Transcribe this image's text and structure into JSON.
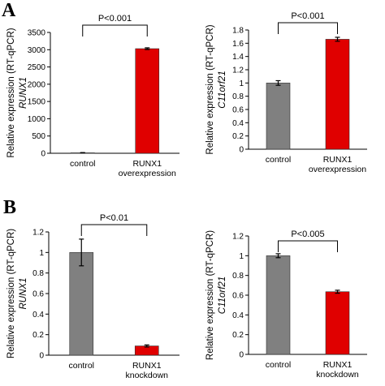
{
  "panels": [
    {
      "letter": "A"
    },
    {
      "letter": "B"
    }
  ],
  "chart_data": [
    {
      "type": "bar",
      "panel": "A",
      "ylabel": "Relative expression (RT-qPCR)",
      "ylabel_gene": "RUNX1",
      "categories": [
        [
          "control"
        ],
        [
          "RUNX1",
          "overexpression"
        ]
      ],
      "values": [
        15,
        3030
      ],
      "errors": [
        5,
        25
      ],
      "colors": [
        "#808080",
        "#e00000"
      ],
      "ylim": [
        0,
        3500
      ],
      "yticks": [
        0,
        500,
        1000,
        1500,
        2000,
        2500,
        3000,
        3500
      ],
      "yticks_labels": [
        "0",
        "500",
        "1000",
        "1500",
        "2000",
        "2500",
        "3000",
        "3500"
      ],
      "annotation": "P<0.001"
    },
    {
      "type": "bar",
      "panel": "A",
      "ylabel": "Relative expression (RT-qPCR)",
      "ylabel_gene": "C11orf21",
      "categories": [
        [
          "control"
        ],
        [
          "RUNX1",
          "overexpression"
        ]
      ],
      "values": [
        1.0,
        1.66
      ],
      "errors": [
        0.035,
        0.03
      ],
      "colors": [
        "#808080",
        "#e00000"
      ],
      "ylim": [
        0,
        1.8
      ],
      "yticks": [
        0,
        0.2,
        0.4,
        0.6,
        0.8,
        1.0,
        1.2,
        1.4,
        1.6,
        1.8
      ],
      "yticks_labels": [
        "0",
        "0.2",
        "0.4",
        "0.6",
        "0.8",
        "1",
        "1.2",
        "1.4",
        "1.6",
        "1.8"
      ],
      "annotation": "P<0.001"
    },
    {
      "type": "bar",
      "panel": "B",
      "ylabel": "Relative expression (RT-qPCR)",
      "ylabel_gene": "RUNX1",
      "categories": [
        [
          "control"
        ],
        [
          "RUNX1",
          "knockdown"
        ]
      ],
      "values": [
        1.0,
        0.09
      ],
      "errors": [
        0.13,
        0.01
      ],
      "colors": [
        "#808080",
        "#e00000"
      ],
      "ylim": [
        0,
        1.2
      ],
      "yticks": [
        0,
        0.2,
        0.4,
        0.6,
        0.8,
        1.0,
        1.2
      ],
      "yticks_labels": [
        "0",
        "0.2",
        "0.4",
        "0.6",
        "0.8",
        "1",
        "1.2"
      ],
      "annotation": "P<0.01"
    },
    {
      "type": "bar",
      "panel": "B",
      "ylabel": "Relative expression (RT-qPCR)",
      "ylabel_gene": "C11orf21",
      "categories": [
        [
          "control"
        ],
        [
          "RUNX1",
          "knockdown"
        ]
      ],
      "values": [
        1.0,
        0.635
      ],
      "errors": [
        0.02,
        0.015
      ],
      "colors": [
        "#808080",
        "#e00000"
      ],
      "ylim": [
        0,
        1.2
      ],
      "yticks": [
        0,
        0.2,
        0.4,
        0.6,
        0.8,
        1.0,
        1.2
      ],
      "yticks_labels": [
        "0",
        "0.2",
        "0.4",
        "0.6",
        "0.8",
        "1",
        "1.2"
      ],
      "annotation": "P<0.005"
    }
  ]
}
